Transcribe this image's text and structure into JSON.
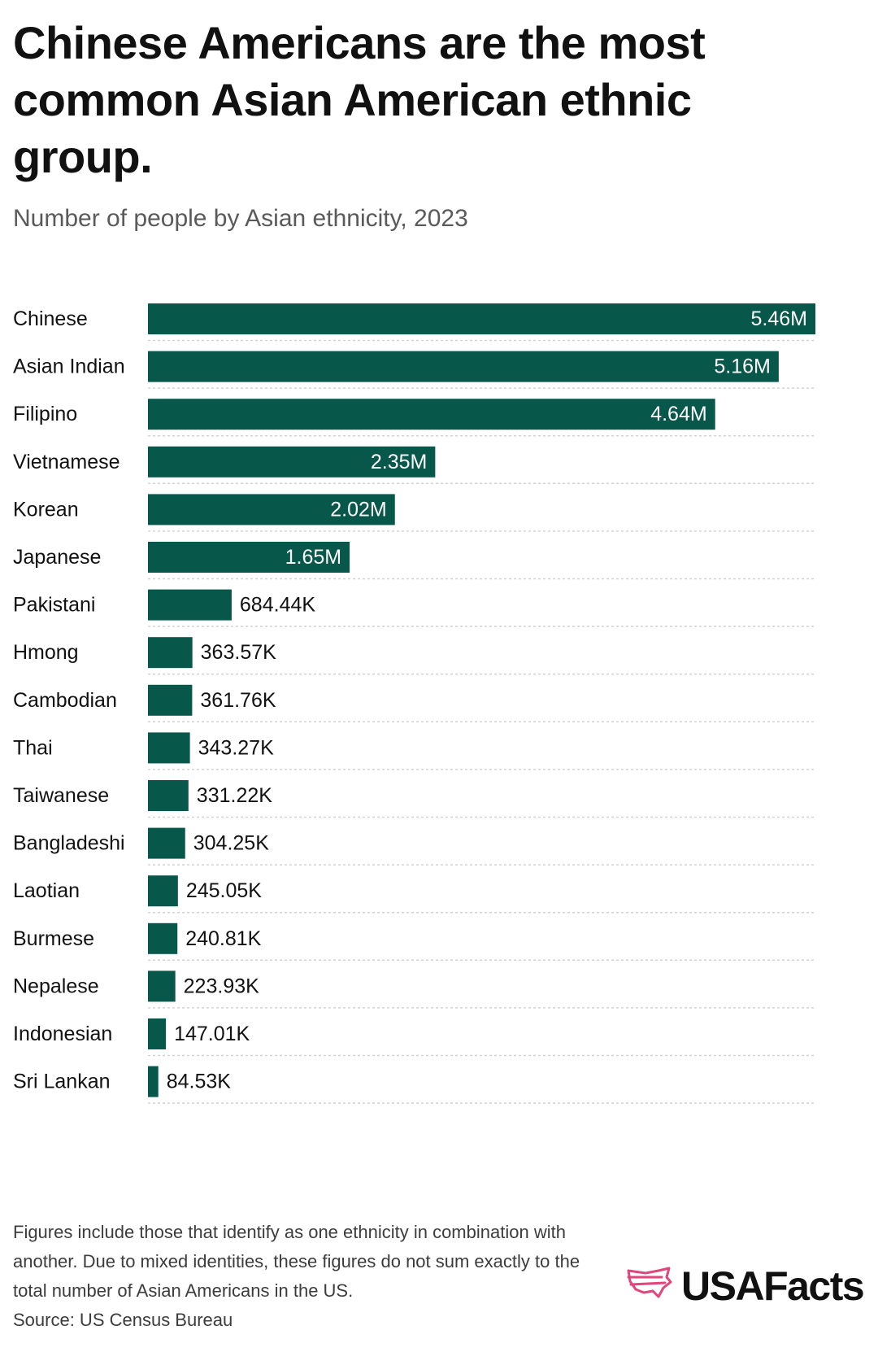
{
  "title": "Chinese Americans are the most common Asian American ethnic group.",
  "subtitle": "Number of people by Asian ethnicity, 2023",
  "footnote": "Figures include those that identify as one ethnicity in combination with another. Due to mixed identities, these figures do not sum exactly to the total number of Asian Americans in the US.",
  "source": "Source: US Census Bureau",
  "logo": {
    "text": "USAFacts",
    "icon": "usa-map-icon"
  },
  "colors": {
    "bar": "#07574a",
    "divider": "#d2d2d2",
    "label": "#111111",
    "inside_label": "#ffffff",
    "logo_icon": "#e0457b"
  },
  "chart_data": {
    "type": "bar",
    "orientation": "horizontal",
    "categories": [
      "Chinese",
      "Asian Indian",
      "Filipino",
      "Vietnamese",
      "Korean",
      "Japanese",
      "Pakistani",
      "Hmong",
      "Cambodian",
      "Thai",
      "Taiwanese",
      "Bangladeshi",
      "Laotian",
      "Burmese",
      "Nepalese",
      "Indonesian",
      "Sri Lankan"
    ],
    "values": [
      5460000,
      5160000,
      4640000,
      2350000,
      2020000,
      1650000,
      684440,
      363570,
      361760,
      343270,
      331220,
      304250,
      245050,
      240810,
      223930,
      147010,
      84530
    ],
    "value_labels": [
      "5.46M",
      "5.16M",
      "4.64M",
      "2.35M",
      "2.02M",
      "1.65M",
      "684.44K",
      "363.57K",
      "361.76K",
      "343.27K",
      "331.22K",
      "304.25K",
      "245.05K",
      "240.81K",
      "223.93K",
      "147.01K",
      "84.53K"
    ],
    "title": "Chinese Americans are the most common Asian American ethnic group.",
    "subtitle": "Number of people by Asian ethnicity, 2023",
    "xlim": [
      0,
      5460000
    ],
    "grid": false,
    "legend": "none"
  }
}
